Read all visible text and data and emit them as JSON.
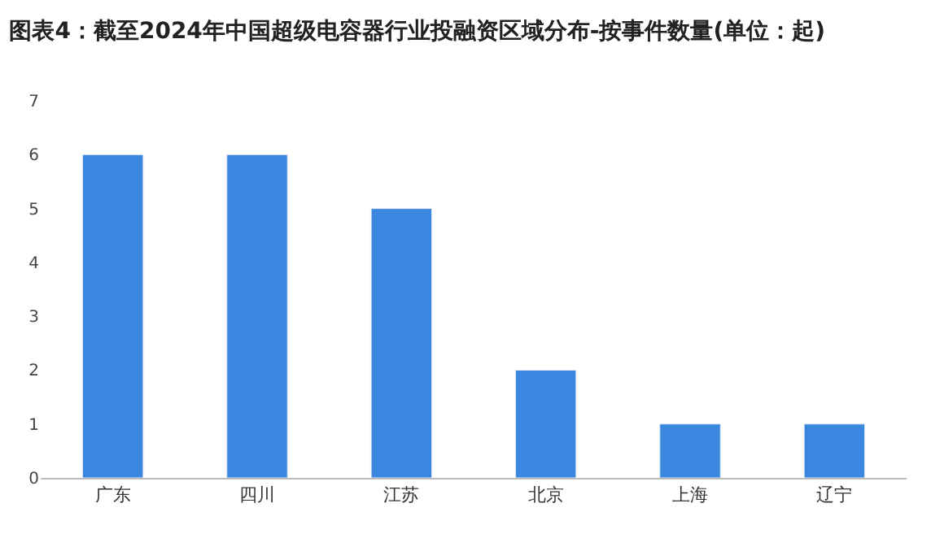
{
  "chart_data": {
    "type": "bar",
    "title": "图表4：截至2024年中国超级电容器行业投融资区域分布-按事件数量(单位：起)",
    "categories": [
      "广东",
      "四川",
      "江苏",
      "北京",
      "上海",
      "辽宁"
    ],
    "values": [
      6,
      6,
      5,
      2,
      1,
      1
    ],
    "color": "#3b87e0",
    "ylim": [
      0,
      7
    ],
    "yticks": [
      0,
      1,
      2,
      3,
      4,
      5,
      6,
      7
    ]
  }
}
